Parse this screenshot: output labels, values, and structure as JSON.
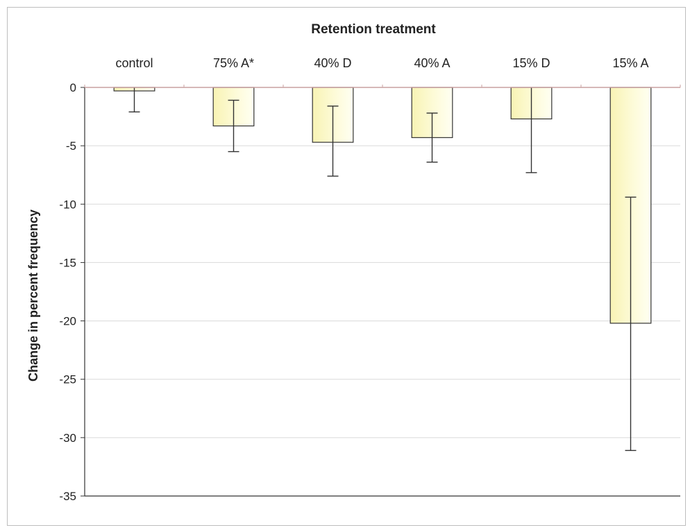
{
  "chart_data": {
    "type": "bar",
    "title": "Retention treatment",
    "xlabel": "Retention treatment",
    "ylabel": "Change in percent frequency",
    "categories": [
      "control",
      "75% A*",
      "40% D",
      "40% A",
      "15% D",
      "15% A"
    ],
    "values": [
      -0.3,
      -3.3,
      -4.7,
      -4.3,
      -2.7,
      -20.2
    ],
    "error_low": [
      -2.1,
      -5.5,
      -7.6,
      -6.4,
      -7.3,
      -31.1
    ],
    "error_high": [
      0,
      -1.1,
      -1.6,
      -2.2,
      0,
      -9.4
    ],
    "ylim": [
      -35,
      0
    ],
    "yticks": [
      0,
      -5,
      -10,
      -15,
      -20,
      -25,
      -30,
      -35
    ],
    "x_axis_position": "top",
    "grid": true,
    "legend": "none",
    "colors": {
      "bar_fill": "#fdfbd8",
      "bar_fill_light": "#fffff2",
      "bar_stroke": "#333333",
      "axis": "#333333",
      "grid": "#d9d9d9",
      "zero_line": "#c9a0a0"
    }
  }
}
